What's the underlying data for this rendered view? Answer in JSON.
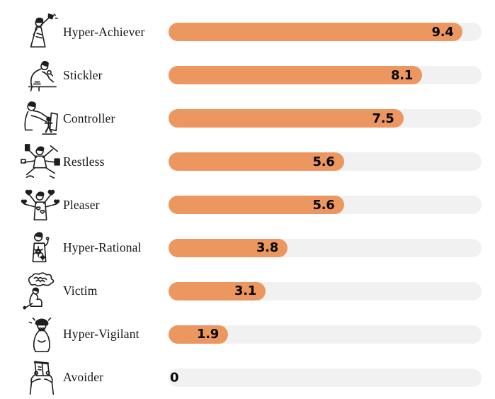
{
  "page": {
    "background": "#ffffff",
    "bar_color": "#ed9760",
    "track_color": "#f1f1f1",
    "label_color": "#151515",
    "value_color": "#050505"
  },
  "chart_data": {
    "type": "bar",
    "orientation": "horizontal",
    "title": "",
    "xlabel": "",
    "ylabel": "",
    "xlim": [
      0,
      10
    ],
    "grid": false,
    "legend": false,
    "categories": [
      "Hyper-Achiever",
      "Stickler",
      "Controller",
      "Restless",
      "Pleaser",
      "Hyper-Rational",
      "Victim",
      "Hyper-Vigilant",
      "Avoider"
    ],
    "values": [
      9.4,
      8.1,
      7.5,
      5.6,
      5.6,
      3.8,
      3.1,
      1.9,
      0
    ]
  },
  "rows": [
    {
      "label": "Hyper-Achiever",
      "value": 9.4,
      "value_label": "9.4",
      "icon": "hyper-achiever-icon"
    },
    {
      "label": "Stickler",
      "value": 8.1,
      "value_label": "8.1",
      "icon": "stickler-icon"
    },
    {
      "label": "Controller",
      "value": 7.5,
      "value_label": "7.5",
      "icon": "controller-icon"
    },
    {
      "label": "Restless",
      "value": 5.6,
      "value_label": "5.6",
      "icon": "restless-icon"
    },
    {
      "label": "Pleaser",
      "value": 5.6,
      "value_label": "5.6",
      "icon": "pleaser-icon"
    },
    {
      "label": "Hyper-Rational",
      "value": 3.8,
      "value_label": "3.8",
      "icon": "hyper-rational-icon"
    },
    {
      "label": "Victim",
      "value": 3.1,
      "value_label": "3.1",
      "icon": "victim-icon"
    },
    {
      "label": "Hyper-Vigilant",
      "value": 1.9,
      "value_label": "1.9",
      "icon": "hyper-vigilant-icon"
    },
    {
      "label": "Avoider",
      "value": 0,
      "value_label": "0",
      "icon": "avoider-icon"
    }
  ]
}
